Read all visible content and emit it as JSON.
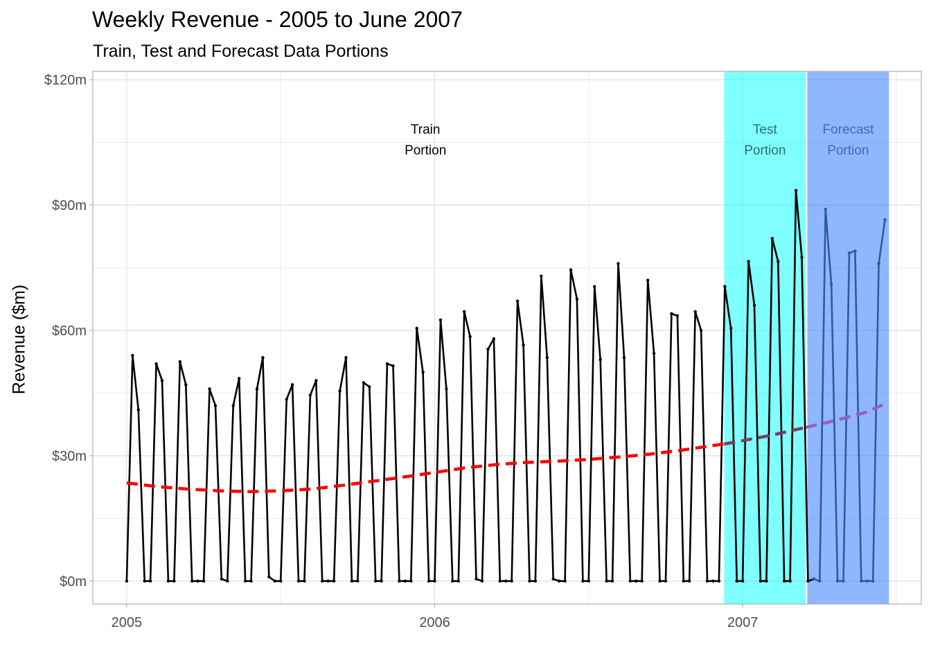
{
  "chart_data": {
    "type": "line",
    "title": "Weekly Revenue - 2005 to June 2007",
    "subtitle": "Train, Test and Forecast Data Portions",
    "xlabel": "",
    "ylabel": "Revenue ($m)",
    "xlim": [
      2004.89,
      2007.58
    ],
    "ylim": [
      -5.5,
      122
    ],
    "x_ticks": [
      2005,
      2006,
      2007
    ],
    "x_tick_labels": [
      "2005",
      "2006",
      "2007"
    ],
    "y_ticks": [
      0,
      30,
      60,
      90,
      120
    ],
    "y_tick_labels": [
      "$0m",
      "$30m",
      "$60m",
      "$90m",
      "$120m"
    ],
    "grid": true,
    "regions": [
      {
        "name": "Train Portion",
        "label_lines": [
          "Train",
          "Portion"
        ],
        "x_start": 2005.0,
        "x_end": 2006.94,
        "fill": "none",
        "text_color": "#000000"
      },
      {
        "name": "Test Portion",
        "label_lines": [
          "Test",
          "Portion"
        ],
        "x_start": 2006.94,
        "x_end": 2007.205,
        "fill": "#00ffff",
        "fill_opacity": 0.5,
        "text_color": "#2c6f6f"
      },
      {
        "name": "Forecast Portion",
        "label_lines": [
          "Forecast",
          "Portion"
        ],
        "x_start": 2007.21,
        "x_end": 2007.475,
        "fill": "#1e6fff",
        "fill_opacity": 0.5,
        "text_color": "#3b6db5"
      }
    ],
    "series": [
      {
        "role": "actual",
        "style": "solid",
        "color": "#000000",
        "points": [
          [
            2005.0,
            0
          ],
          [
            2005.019,
            54
          ],
          [
            2005.038,
            41
          ],
          [
            2005.058,
            0
          ],
          [
            2005.077,
            0
          ],
          [
            2005.096,
            52
          ],
          [
            2005.115,
            48
          ],
          [
            2005.135,
            0
          ],
          [
            2005.154,
            0
          ],
          [
            2005.173,
            52.5
          ],
          [
            2005.192,
            47
          ],
          [
            2005.212,
            0
          ],
          [
            2005.231,
            0
          ],
          [
            2005.25,
            0
          ],
          [
            2005.269,
            46
          ],
          [
            2005.288,
            42
          ],
          [
            2005.308,
            0.5
          ],
          [
            2005.327,
            0
          ],
          [
            2005.346,
            42
          ],
          [
            2005.365,
            48.5
          ],
          [
            2005.385,
            0
          ],
          [
            2005.404,
            0
          ],
          [
            2005.423,
            46
          ],
          [
            2005.442,
            53.5
          ],
          [
            2005.462,
            1
          ],
          [
            2005.481,
            0
          ],
          [
            2005.5,
            0
          ],
          [
            2005.519,
            43.5
          ],
          [
            2005.538,
            47
          ],
          [
            2005.558,
            0
          ],
          [
            2005.577,
            0
          ],
          [
            2005.596,
            44.5
          ],
          [
            2005.615,
            48
          ],
          [
            2005.635,
            0
          ],
          [
            2005.654,
            0
          ],
          [
            2005.673,
            0
          ],
          [
            2005.692,
            45.5
          ],
          [
            2005.712,
            53.5
          ],
          [
            2005.731,
            0
          ],
          [
            2005.75,
            0
          ],
          [
            2005.769,
            47.5
          ],
          [
            2005.788,
            46.5
          ],
          [
            2005.808,
            0
          ],
          [
            2005.827,
            0
          ],
          [
            2005.846,
            52
          ],
          [
            2005.865,
            51.5
          ],
          [
            2005.885,
            0
          ],
          [
            2005.904,
            0
          ],
          [
            2005.923,
            0
          ],
          [
            2005.942,
            60.5
          ],
          [
            2005.962,
            50
          ],
          [
            2005.981,
            0
          ],
          [
            2006.0,
            0
          ],
          [
            2006.019,
            62.5
          ],
          [
            2006.038,
            46
          ],
          [
            2006.058,
            0
          ],
          [
            2006.077,
            0
          ],
          [
            2006.096,
            64.5
          ],
          [
            2006.115,
            58.5
          ],
          [
            2006.135,
            0.5
          ],
          [
            2006.154,
            0
          ],
          [
            2006.173,
            55.5
          ],
          [
            2006.192,
            58
          ],
          [
            2006.212,
            0
          ],
          [
            2006.231,
            0
          ],
          [
            2006.25,
            0
          ],
          [
            2006.269,
            67
          ],
          [
            2006.288,
            56.5
          ],
          [
            2006.308,
            0
          ],
          [
            2006.327,
            0
          ],
          [
            2006.346,
            73
          ],
          [
            2006.365,
            53.5
          ],
          [
            2006.385,
            0.5
          ],
          [
            2006.404,
            0
          ],
          [
            2006.423,
            0
          ],
          [
            2006.442,
            74.5
          ],
          [
            2006.462,
            67.5
          ],
          [
            2006.481,
            0
          ],
          [
            2006.5,
            0
          ],
          [
            2006.519,
            70.5
          ],
          [
            2006.538,
            53
          ],
          [
            2006.558,
            0
          ],
          [
            2006.577,
            0
          ],
          [
            2006.596,
            76
          ],
          [
            2006.615,
            53.5
          ],
          [
            2006.635,
            0
          ],
          [
            2006.654,
            0
          ],
          [
            2006.673,
            0
          ],
          [
            2006.692,
            72
          ],
          [
            2006.712,
            54.5
          ],
          [
            2006.731,
            0
          ],
          [
            2006.75,
            0
          ],
          [
            2006.769,
            64
          ],
          [
            2006.788,
            63.5
          ],
          [
            2006.808,
            0
          ],
          [
            2006.827,
            0
          ],
          [
            2006.846,
            64.5
          ],
          [
            2006.865,
            60
          ],
          [
            2006.885,
            0
          ],
          [
            2006.904,
            0
          ],
          [
            2006.923,
            0
          ],
          [
            2006.942,
            70.5
          ],
          [
            2006.962,
            60.5
          ],
          [
            2006.981,
            0
          ],
          [
            2007.0,
            0
          ],
          [
            2007.019,
            76.5
          ],
          [
            2007.038,
            66
          ],
          [
            2007.058,
            0
          ],
          [
            2007.077,
            0
          ],
          [
            2007.096,
            82
          ],
          [
            2007.115,
            76.5
          ],
          [
            2007.135,
            0
          ],
          [
            2007.154,
            0
          ],
          [
            2007.173,
            93.5
          ],
          [
            2007.192,
            77.5
          ],
          [
            2007.212,
            0
          ],
          [
            2007.231,
            0.5
          ]
        ]
      },
      {
        "role": "forecast",
        "style": "solid",
        "color": "#2e5aa0",
        "points": [
          [
            2007.231,
            0.5
          ],
          [
            2007.25,
            0
          ],
          [
            2007.269,
            89
          ],
          [
            2007.288,
            71
          ],
          [
            2007.308,
            0
          ],
          [
            2007.327,
            0
          ],
          [
            2007.346,
            78.5
          ],
          [
            2007.365,
            79
          ],
          [
            2007.385,
            0
          ],
          [
            2007.404,
            0
          ],
          [
            2007.423,
            0
          ],
          [
            2007.442,
            76
          ],
          [
            2007.462,
            86.5
          ]
        ]
      },
      {
        "role": "trend",
        "style": "dashed",
        "color": "#ff0000",
        "points": [
          [
            2005.0,
            23.5
          ],
          [
            2005.1,
            22.6
          ],
          [
            2005.2,
            22.0
          ],
          [
            2005.3,
            21.6
          ],
          [
            2005.4,
            21.4
          ],
          [
            2005.5,
            21.6
          ],
          [
            2005.6,
            22.0
          ],
          [
            2005.7,
            22.9
          ],
          [
            2005.8,
            23.9
          ],
          [
            2005.9,
            24.9
          ],
          [
            2006.0,
            26.0
          ],
          [
            2006.1,
            27.1
          ],
          [
            2006.2,
            27.9
          ],
          [
            2006.3,
            28.4
          ],
          [
            2006.4,
            28.7
          ],
          [
            2006.5,
            29.1
          ],
          [
            2006.6,
            29.7
          ],
          [
            2006.7,
            30.4
          ],
          [
            2006.8,
            31.3
          ],
          [
            2006.9,
            32.4
          ],
          [
            2006.94,
            32.8
          ]
        ]
      },
      {
        "role": "trend",
        "style": "dashed",
        "color": "#7a3f5a",
        "points": [
          [
            2006.94,
            32.8
          ],
          [
            2007.0,
            33.6
          ],
          [
            2007.1,
            35.0
          ],
          [
            2007.205,
            36.8
          ]
        ]
      },
      {
        "role": "trend",
        "style": "dashed",
        "color": "#9b5fb5",
        "points": [
          [
            2007.205,
            36.8
          ],
          [
            2007.3,
            38.4
          ],
          [
            2007.4,
            40.4
          ],
          [
            2007.462,
            42.4
          ]
        ]
      }
    ]
  }
}
